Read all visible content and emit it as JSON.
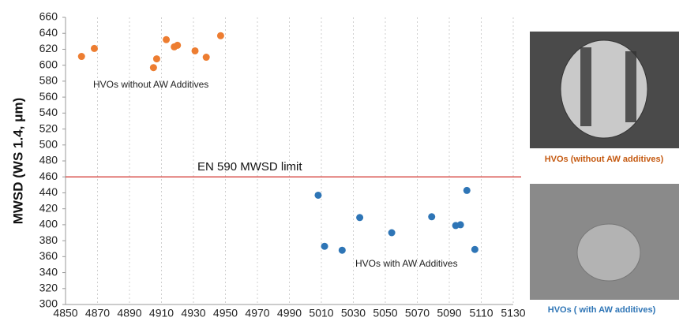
{
  "chart_data": {
    "type": "scatter",
    "y_label": "MWSD (WS 1.4, μm)",
    "xlim": [
      4850,
      5130
    ],
    "xticks": [
      4850,
      4870,
      4890,
      4910,
      4930,
      4950,
      4970,
      4990,
      5010,
      5030,
      5050,
      5070,
      5090,
      5110,
      5130
    ],
    "ylim": [
      300,
      660
    ],
    "yticks": [
      300,
      320,
      340,
      360,
      380,
      400,
      420,
      440,
      460,
      480,
      500,
      520,
      540,
      560,
      580,
      600,
      620,
      640,
      660
    ],
    "grid": true,
    "reference_line": {
      "value": 460,
      "label": "EN 590 MWSD limit",
      "color": "#d9534f"
    },
    "series": [
      {
        "name": "HVOs without AW Additives",
        "color": "#ed7d31",
        "x": [
          4860,
          4868,
          4905,
          4907,
          4913,
          4918,
          4920,
          4931,
          4938,
          4947
        ],
        "values": [
          611,
          621,
          597,
          608,
          632,
          623,
          625,
          618,
          610,
          637
        ]
      },
      {
        "name": "HVOs with AW Additives",
        "color": "#2e75b6",
        "x": [
          5008,
          5012,
          5023,
          5034,
          5054,
          5079,
          5094,
          5097,
          5101,
          5106
        ],
        "values": [
          437,
          373,
          368,
          409,
          390,
          410,
          399,
          400,
          443,
          369
        ]
      }
    ]
  },
  "panels": [
    {
      "caption": "HVOs (without AW additives)",
      "color": "#c55a11"
    },
    {
      "caption": "HVOs ( with AW additives)",
      "color": "#2e75b6"
    }
  ]
}
